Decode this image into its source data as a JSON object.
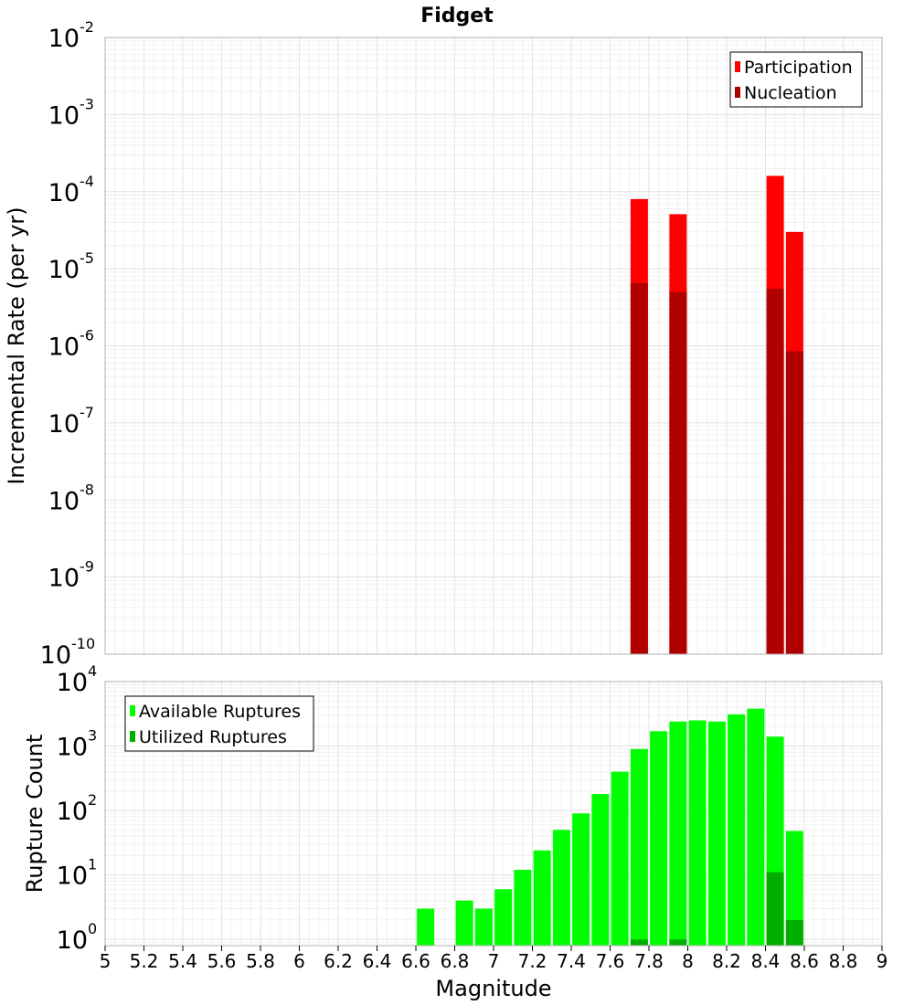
{
  "chart_data": [
    {
      "type": "bar",
      "title": "Fidget",
      "ylabel": "Incremental Rate (per yr)",
      "xlabel": "",
      "y_scale": "log",
      "ylim": [
        1e-10,
        0.01
      ],
      "y_ticks": [
        {
          "base": "10",
          "exp": "-10",
          "value": 1e-10
        },
        {
          "base": "10",
          "exp": "-9",
          "value": 1e-09
        },
        {
          "base": "10",
          "exp": "-8",
          "value": 1e-08
        },
        {
          "base": "10",
          "exp": "-7",
          "value": 1e-07
        },
        {
          "base": "10",
          "exp": "-6",
          "value": 1e-06
        },
        {
          "base": "10",
          "exp": "-5",
          "value": 1e-05
        },
        {
          "base": "10",
          "exp": "-4",
          "value": 0.0001
        },
        {
          "base": "10",
          "exp": "-3",
          "value": 0.001
        },
        {
          "base": "10",
          "exp": "-2",
          "value": 0.01
        }
      ],
      "grid": true,
      "legend_position": "top-right",
      "series": [
        {
          "name": "Participation",
          "color": "#ff0000",
          "points": [
            {
              "x": 7.75,
              "y": 8e-05
            },
            {
              "x": 7.95,
              "y": 5.1e-05
            },
            {
              "x": 8.45,
              "y": 0.00016
            },
            {
              "x": 8.55,
              "y": 3e-05
            }
          ]
        },
        {
          "name": "Nucleation",
          "color": "#b00000",
          "points": [
            {
              "x": 7.75,
              "y": 6.5e-06
            },
            {
              "x": 7.95,
              "y": 5e-06
            },
            {
              "x": 8.45,
              "y": 5.5e-06
            },
            {
              "x": 8.55,
              "y": 8.5e-07
            }
          ]
        }
      ]
    },
    {
      "type": "bar",
      "title": "",
      "xlabel": "Magnitude",
      "ylabel": "Rupture Count",
      "y_scale": "log",
      "ylim": [
        0.8,
        10000
      ],
      "xlim": [
        5,
        9
      ],
      "x_ticks": [
        "5",
        "5.2",
        "5.4",
        "5.6",
        "5.8",
        "6",
        "6.2",
        "6.4",
        "6.6",
        "6.8",
        "7",
        "7.2",
        "7.4",
        "7.6",
        "7.8",
        "8",
        "8.2",
        "8.4",
        "8.6",
        "8.8",
        "9"
      ],
      "y_ticks": [
        {
          "base": "10",
          "exp": "0",
          "value": 1
        },
        {
          "base": "10",
          "exp": "1",
          "value": 10
        },
        {
          "base": "10",
          "exp": "2",
          "value": 100
        },
        {
          "base": "10",
          "exp": "3",
          "value": 1000
        },
        {
          "base": "10",
          "exp": "4",
          "value": 10000
        }
      ],
      "grid": true,
      "legend_position": "top-left",
      "series": [
        {
          "name": "Available Ruptures",
          "color": "#00ff00",
          "points": [
            {
              "x": 6.65,
              "y": 3
            },
            {
              "x": 6.85,
              "y": 4
            },
            {
              "x": 6.95,
              "y": 3
            },
            {
              "x": 7.05,
              "y": 6
            },
            {
              "x": 7.15,
              "y": 12
            },
            {
              "x": 7.25,
              "y": 24
            },
            {
              "x": 7.35,
              "y": 50
            },
            {
              "x": 7.45,
              "y": 90
            },
            {
              "x": 7.55,
              "y": 180
            },
            {
              "x": 7.65,
              "y": 400
            },
            {
              "x": 7.75,
              "y": 900
            },
            {
              "x": 7.85,
              "y": 1700
            },
            {
              "x": 7.95,
              "y": 2400
            },
            {
              "x": 8.05,
              "y": 2500
            },
            {
              "x": 8.15,
              "y": 2400
            },
            {
              "x": 8.25,
              "y": 3100
            },
            {
              "x": 8.35,
              "y": 3800
            },
            {
              "x": 8.45,
              "y": 1400
            },
            {
              "x": 8.55,
              "y": 48
            }
          ]
        },
        {
          "name": "Utilized Ruptures",
          "color": "#00b000",
          "points": [
            {
              "x": 7.75,
              "y": 1
            },
            {
              "x": 7.95,
              "y": 1
            },
            {
              "x": 8.45,
              "y": 11
            },
            {
              "x": 8.55,
              "y": 2
            }
          ]
        }
      ]
    }
  ]
}
